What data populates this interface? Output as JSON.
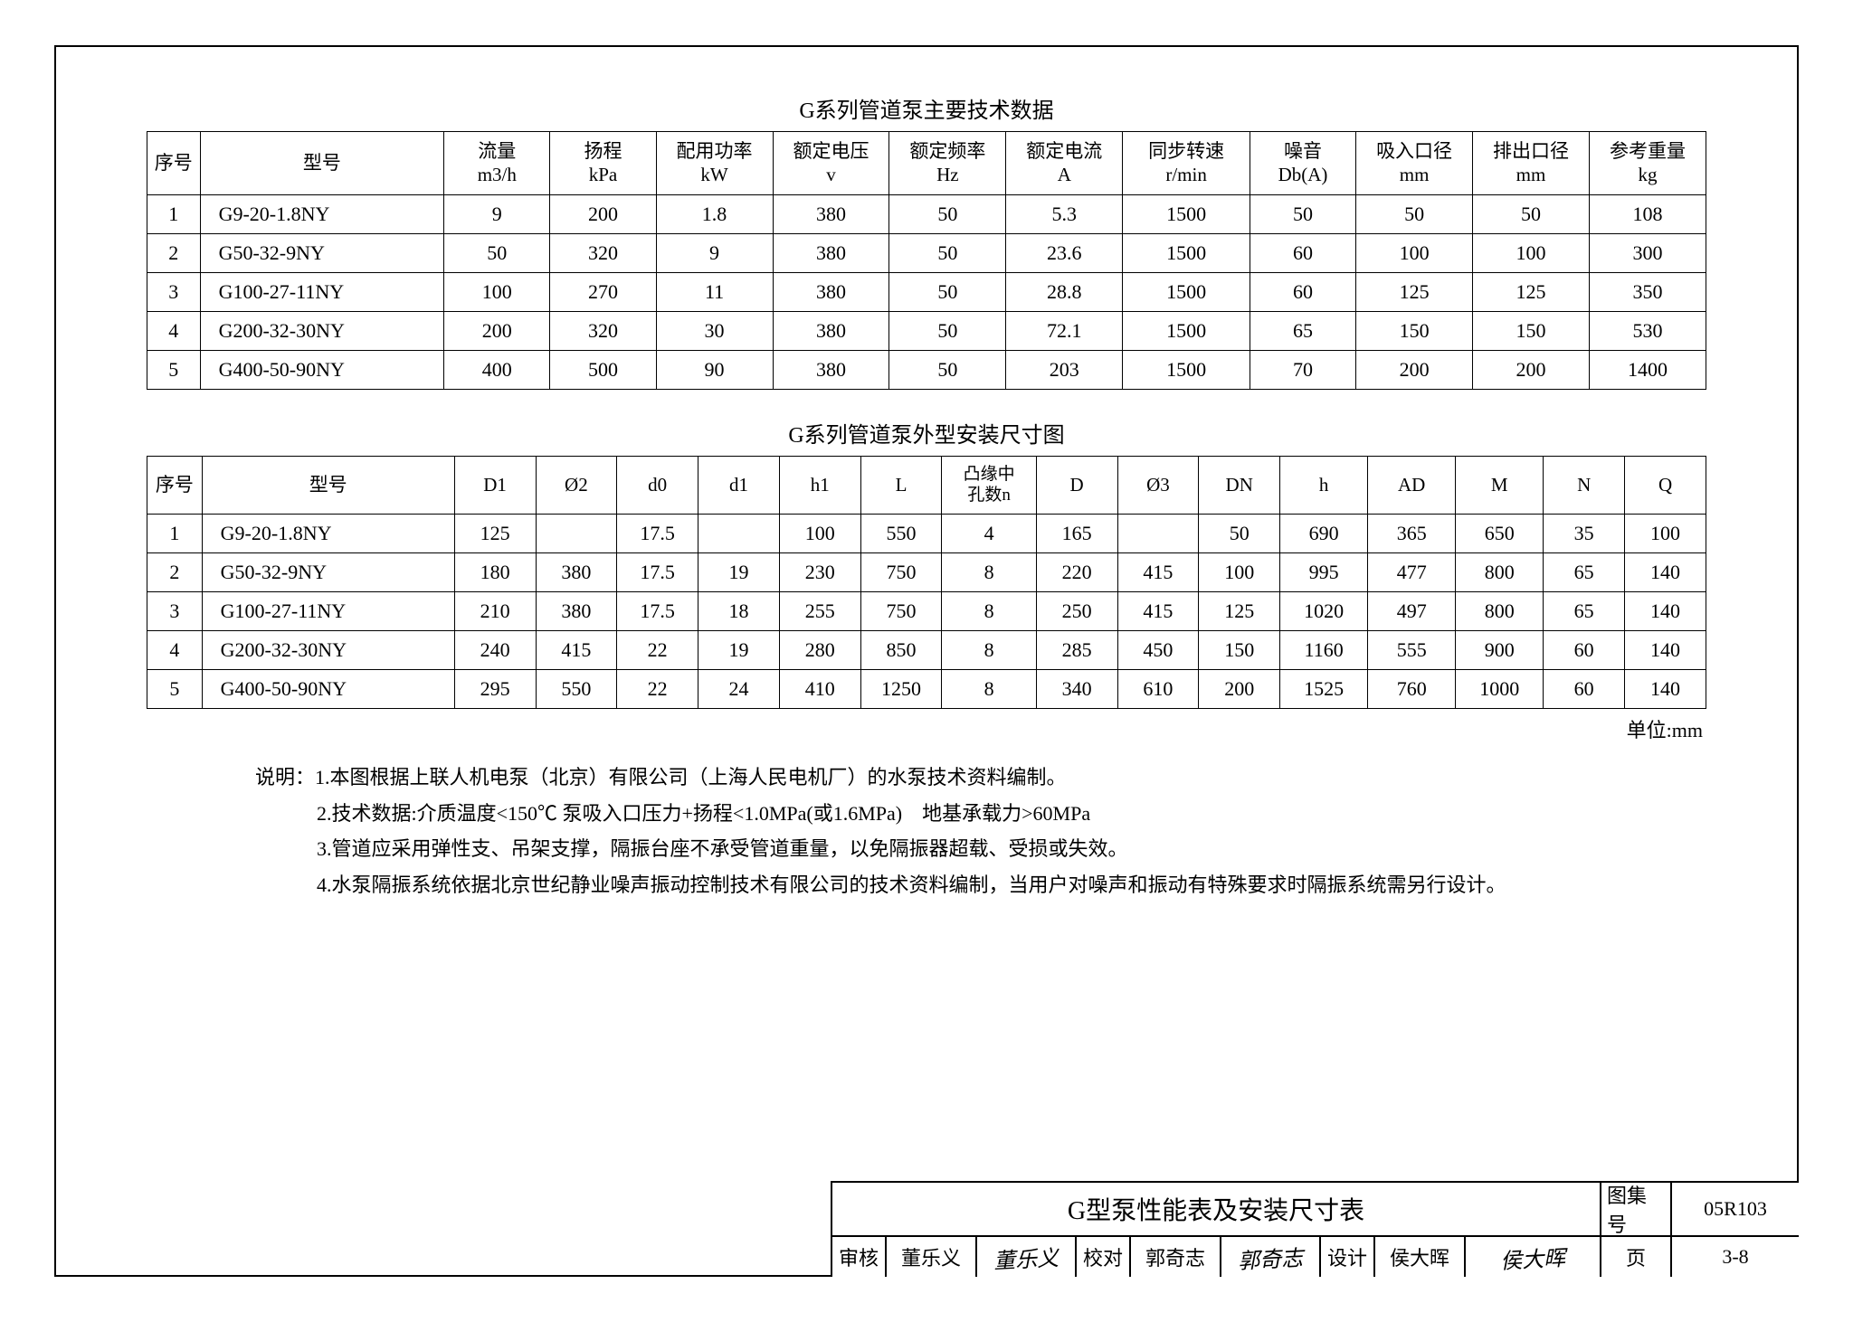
{
  "table1": {
    "title": "G系列管道泵主要技术数据",
    "columns": [
      {
        "l1": "序号",
        "l2": ""
      },
      {
        "l1": "型号",
        "l2": ""
      },
      {
        "l1": "流量",
        "l2": "m3/h"
      },
      {
        "l1": "扬程",
        "l2": "kPa"
      },
      {
        "l1": "配用功率",
        "l2": "kW"
      },
      {
        "l1": "额定电压",
        "l2": "v"
      },
      {
        "l1": "额定频率",
        "l2": "Hz"
      },
      {
        "l1": "额定电流",
        "l2": "A"
      },
      {
        "l1": "同步转速",
        "l2": "r/min"
      },
      {
        "l1": "噪音",
        "l2": "Db(A)"
      },
      {
        "l1": "吸入口径",
        "l2": "mm"
      },
      {
        "l1": "排出口径",
        "l2": "mm"
      },
      {
        "l1": "参考重量",
        "l2": "kg"
      }
    ],
    "colwidths": [
      "50px",
      "230px",
      "100px",
      "100px",
      "110px",
      "110px",
      "110px",
      "110px",
      "120px",
      "100px",
      "110px",
      "110px",
      "110px"
    ],
    "rows": [
      [
        "1",
        "G9-20-1.8NY",
        "9",
        "200",
        "1.8",
        "380",
        "50",
        "5.3",
        "1500",
        "50",
        "50",
        "50",
        "108"
      ],
      [
        "2",
        "G50-32-9NY",
        "50",
        "320",
        "9",
        "380",
        "50",
        "23.6",
        "1500",
        "60",
        "100",
        "100",
        "300"
      ],
      [
        "3",
        "G100-27-11NY",
        "100",
        "270",
        "11",
        "380",
        "50",
        "28.8",
        "1500",
        "60",
        "125",
        "125",
        "350"
      ],
      [
        "4",
        "G200-32-30NY",
        "200",
        "320",
        "30",
        "380",
        "50",
        "72.1",
        "1500",
        "65",
        "150",
        "150",
        "530"
      ],
      [
        "5",
        "G400-50-90NY",
        "400",
        "500",
        "90",
        "380",
        "50",
        "203",
        "1500",
        "70",
        "200",
        "200",
        "1400"
      ]
    ]
  },
  "table2": {
    "title": "G系列管道泵外型安装尺寸图",
    "columns": [
      "序号",
      "型号",
      "D1",
      "Ø2",
      "d0",
      "d1",
      "h1",
      "L",
      "凸缘中孔数n",
      "D",
      "Ø3",
      "DN",
      "h",
      "AD",
      "M",
      "N",
      "Q"
    ],
    "colwidths": [
      "50px",
      "230px",
      "74px",
      "74px",
      "74px",
      "74px",
      "74px",
      "74px",
      "86px",
      "74px",
      "74px",
      "74px",
      "80px",
      "80px",
      "80px",
      "74px",
      "74px"
    ],
    "rows": [
      [
        "1",
        "G9-20-1.8NY",
        "125",
        "",
        "17.5",
        "",
        "100",
        "550",
        "4",
        "165",
        "",
        "50",
        "690",
        "365",
        "650",
        "35",
        "100"
      ],
      [
        "2",
        "G50-32-9NY",
        "180",
        "380",
        "17.5",
        "19",
        "230",
        "750",
        "8",
        "220",
        "415",
        "100",
        "995",
        "477",
        "800",
        "65",
        "140"
      ],
      [
        "3",
        "G100-27-11NY",
        "210",
        "380",
        "17.5",
        "18",
        "255",
        "750",
        "8",
        "250",
        "415",
        "125",
        "1020",
        "497",
        "800",
        "65",
        "140"
      ],
      [
        "4",
        "G200-32-30NY",
        "240",
        "415",
        "22",
        "19",
        "280",
        "850",
        "8",
        "285",
        "450",
        "150",
        "1160",
        "555",
        "900",
        "60",
        "140"
      ],
      [
        "5",
        "G400-50-90NY",
        "295",
        "550",
        "22",
        "24",
        "410",
        "1250",
        "8",
        "340",
        "610",
        "200",
        "1525",
        "760",
        "1000",
        "60",
        "140"
      ]
    ],
    "unit_note": "单位:mm"
  },
  "notes": {
    "prefix": "说明：",
    "lines": [
      "1.本图根据上联人机电泵（北京）有限公司（上海人民电机厂）的水泵技术资料编制。",
      "2.技术数据:介质温度<150℃ 泵吸入口压力+扬程<1.0MPa(或1.6MPa)　地基承载力>60MPa",
      "3.管道应采用弹性支、吊架支撑，隔振台座不承受管道重量，以免隔振器超载、受损或失效。",
      "4.水泵隔振系统依据北京世纪静业噪声振动控制技术有限公司的技术资料编制，当用户对噪声和振动有特殊要求时隔振系统需另行设计。"
    ]
  },
  "titleblock": {
    "main_title": "G型泵性能表及安装尺寸表",
    "atlas_label": "图集号",
    "atlas_value": "05R103",
    "review_label": "审核",
    "review_name": "董乐义",
    "review_sig": "董乐义",
    "check_label": "校对",
    "check_name": "郭奇志",
    "check_sig": "郭奇志",
    "design_label": "设计",
    "design_name": "侯大晖",
    "design_sig": "侯大晖",
    "page_label": "页",
    "page_value": "3-8"
  }
}
